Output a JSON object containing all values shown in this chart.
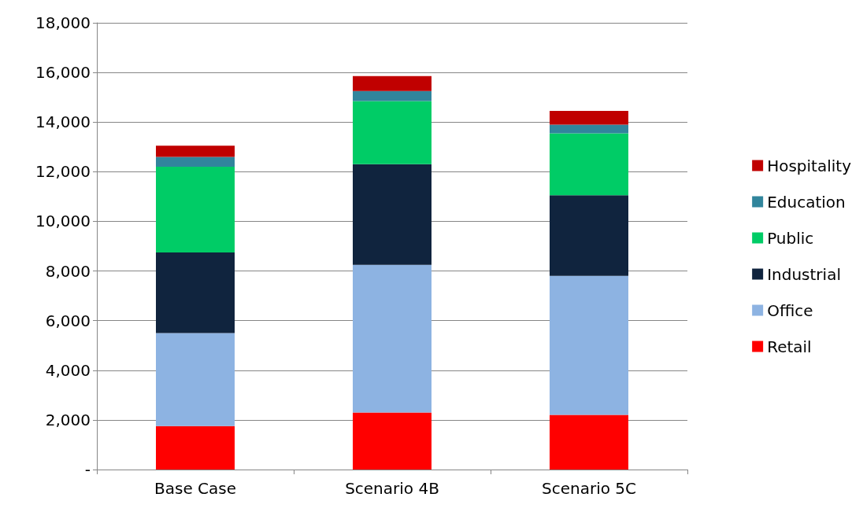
{
  "chart_data": {
    "type": "bar",
    "stacked": true,
    "categories": [
      "Base Case",
      "Scenario 4B",
      "Scenario 5C"
    ],
    "series": [
      {
        "name": "Retail",
        "color": "#ff0000",
        "values": [
          1750,
          2300,
          2200
        ]
      },
      {
        "name": "Office",
        "color": "#8db3e2",
        "values": [
          3750,
          5950,
          5600
        ]
      },
      {
        "name": "Industrial",
        "color": "#10243e",
        "values": [
          3250,
          4050,
          3250
        ]
      },
      {
        "name": "Public",
        "color": "#00cc66",
        "values": [
          3450,
          2550,
          2500
        ]
      },
      {
        "name": "Education",
        "color": "#31859c",
        "values": [
          400,
          400,
          350
        ]
      },
      {
        "name": "Hospitality",
        "color": "#c00000",
        "values": [
          450,
          600,
          550
        ]
      }
    ],
    "ylim": [
      0,
      18000
    ],
    "yticks": [
      {
        "value": 0,
        "label": "-"
      },
      {
        "value": 2000,
        "label": "2,000"
      },
      {
        "value": 4000,
        "label": "4,000"
      },
      {
        "value": 6000,
        "label": "6,000"
      },
      {
        "value": 8000,
        "label": "8,000"
      },
      {
        "value": 10000,
        "label": "10,000"
      },
      {
        "value": 12000,
        "label": "12,000"
      },
      {
        "value": 14000,
        "label": "14,000"
      },
      {
        "value": 16000,
        "label": "16,000"
      },
      {
        "value": 18000,
        "label": "18,000"
      }
    ],
    "grid": "y",
    "legend": "right"
  }
}
